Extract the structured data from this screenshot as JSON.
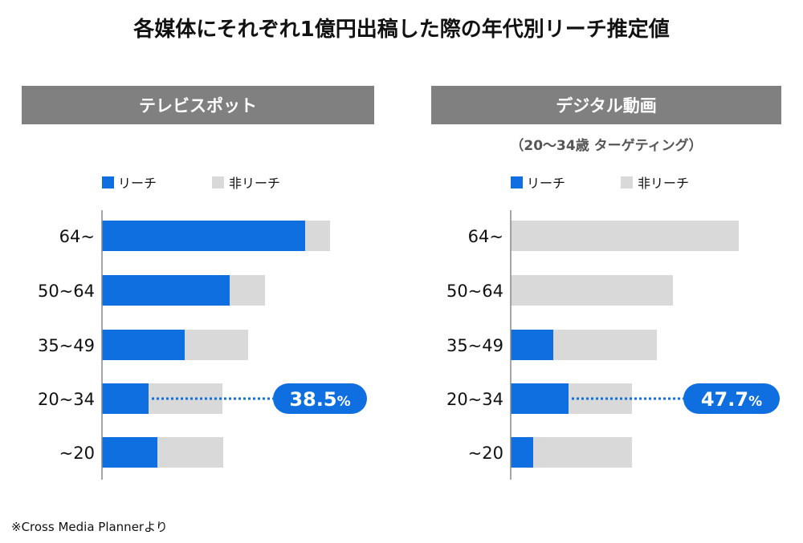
{
  "title": "各媒体にそれぞれ1億円出稿した際の年代別リーチ推定値",
  "footnote": "※Cross Media Plannerより",
  "colors": {
    "reach": "#0f6fe0",
    "non_reach": "#d9d9d9",
    "panel_header": "#808080",
    "axis": "#888888"
  },
  "chart_data": [
    {
      "type": "bar",
      "stacked": true,
      "orientation": "horizontal",
      "title": "テレビスポット",
      "subtitle": "",
      "legend": [
        "リーチ",
        "非リーチ"
      ],
      "legend_placement": "top",
      "categories": [
        "64~",
        "50~64",
        "35~49",
        "20~34",
        "~20"
      ],
      "series": [
        {
          "name": "リーチ",
          "values": [
            253,
            159,
            103,
            58,
            69
          ]
        },
        {
          "name": "非リーチ",
          "values": [
            31,
            44,
            79,
            92,
            82
          ]
        }
      ],
      "callout": {
        "category": "20~34",
        "value": "38.5",
        "unit": "%"
      }
    },
    {
      "type": "bar",
      "stacked": true,
      "orientation": "horizontal",
      "title": "デジタル動画",
      "subtitle": "（20～34歳 ターゲティング）",
      "legend": [
        "リーチ",
        "非リーチ"
      ],
      "legend_placement": "top",
      "categories": [
        "64~",
        "50~64",
        "35~49",
        "20~34",
        "~20"
      ],
      "series": [
        {
          "name": "リーチ",
          "values": [
            0,
            0,
            53,
            72,
            28
          ]
        },
        {
          "name": "非リーチ",
          "values": [
            284,
            202,
            129,
            79,
            123
          ]
        }
      ],
      "callout": {
        "category": "20~34",
        "value": "47.7",
        "unit": "%"
      }
    }
  ]
}
